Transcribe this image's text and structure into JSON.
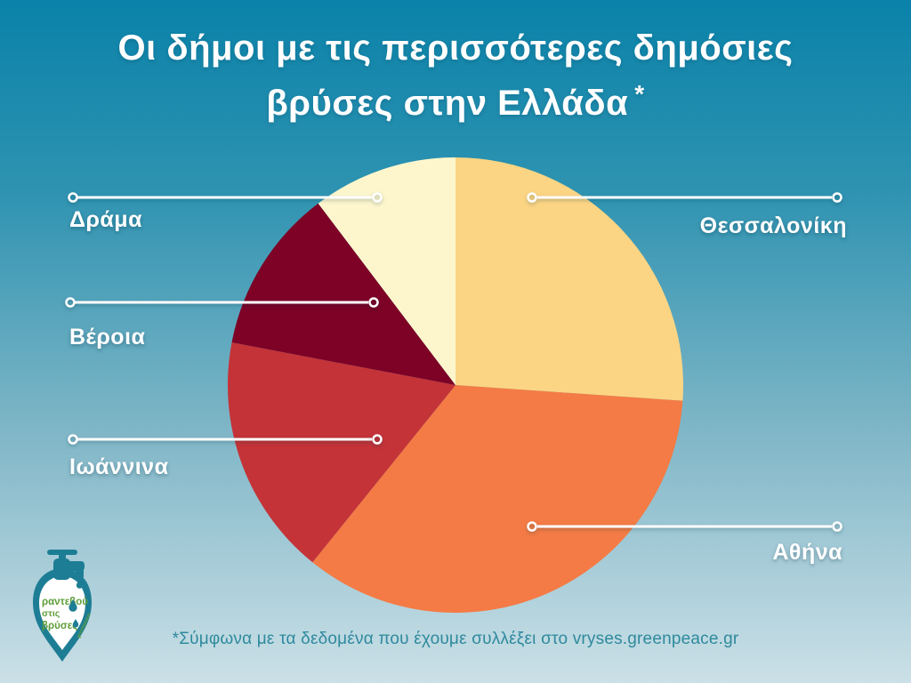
{
  "header": {
    "line1": "Οι δήμοι με τις περισσότερες δημόσιες",
    "line2": "βρύσες στην Ελλάδα",
    "asterisk": "*"
  },
  "chart_data": {
    "type": "pie",
    "title": "Οι δήμοι με τις περισσότερες δημόσιες βρύσες στην Ελλάδα*",
    "start_angle_deg": 0,
    "direction": "clockwise",
    "values_unit": "% of pie, estimated from slice angles (no numeric labels shown in image)",
    "legend_position": "callout-labels around pie",
    "slices": [
      {
        "id": "thessaloniki",
        "label": "Θεσσαλονίκη",
        "value": 26.1,
        "color": "#FBD584"
      },
      {
        "id": "athina",
        "label": "Αθήνα",
        "value": 34.7,
        "color": "#F47B45"
      },
      {
        "id": "ioannina",
        "label": "Ιωάννινα",
        "value": 17.2,
        "color": "#C43338"
      },
      {
        "id": "veroia",
        "label": "Βέροια",
        "value": 11.7,
        "color": "#7D0226"
      },
      {
        "id": "drama",
        "label": "Δράμα",
        "value": 10.3,
        "color": "#FDF6CD"
      }
    ]
  },
  "footer": {
    "text": "*Σύμφωνα με τα δεδομένα που έχουμε συλλέξει στο vryses.greenpeace.gr"
  },
  "logo": {
    "line1": "ραντεβού",
    "line2": "στις",
    "line3": "βρύσες",
    "brand": "greenpeace"
  },
  "colors": {
    "background_top": "#0A82A9",
    "background_bottom": "#CBE0E7",
    "label_text": "#FFFFFF",
    "callout_line": "#FFFFFF",
    "footnote_text": "#2E8A9D",
    "logo_teal": "#1D7D95",
    "logo_green": "#5F9E3A"
  }
}
